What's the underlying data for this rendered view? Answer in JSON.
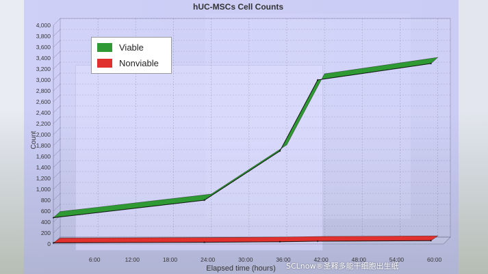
{
  "chart_data": {
    "type": "area",
    "title": "hUC-MSCs Cell Counts",
    "xlabel": "Elapsed time (hours)",
    "ylabel": "Count",
    "x_categories": [
      "6:00",
      "12:00",
      "18:00",
      "24:00",
      "30:00",
      "36:00",
      "42:00",
      "48:00",
      "54:00",
      "60:00"
    ],
    "y_ticks": [
      "0",
      "200",
      "400",
      "600",
      "800",
      "1,000",
      "1,200",
      "1,400",
      "1,600",
      "1,800",
      "2,000",
      "2,200",
      "2,400",
      "2,600",
      "2,800",
      "3,000",
      "3,200",
      "3,400",
      "3,600",
      "3,800",
      "4,000"
    ],
    "ylim": [
      0,
      4000
    ],
    "series": [
      {
        "name": "Viable",
        "color": "#2f9a33",
        "x": [
          0,
          24,
          36,
          42,
          60
        ],
        "y": [
          480,
          800,
          1700,
          3000,
          3300
        ]
      },
      {
        "name": "Nonviable",
        "color": "#e0312f",
        "x": [
          0,
          24,
          36,
          42,
          60
        ],
        "y": [
          20,
          30,
          40,
          50,
          60
        ]
      }
    ],
    "grid": true,
    "legend_position": "top-left"
  },
  "watermark": "SCLnow®圣释多能干细胞出生纸"
}
